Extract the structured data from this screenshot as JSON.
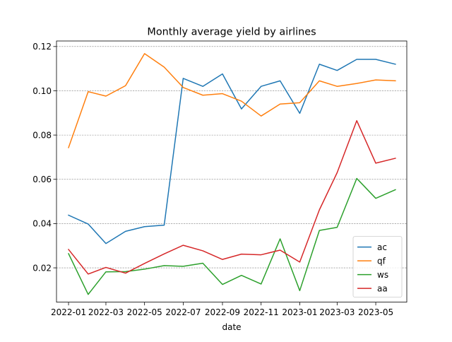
{
  "chart_data": {
    "type": "line",
    "title": "Monthly average yield by airlines",
    "xlabel": "date",
    "ylabel": "",
    "x": [
      "2022-01",
      "2022-02",
      "2022-03",
      "2022-04",
      "2022-05",
      "2022-06",
      "2022-07",
      "2022-08",
      "2022-09",
      "2022-10",
      "2022-11",
      "2022-12",
      "2023-01",
      "2023-02",
      "2023-03",
      "2023-04",
      "2023-05",
      "2023-06"
    ],
    "x_ticks": [
      "2022-01",
      "2022-03",
      "2022-05",
      "2022-07",
      "2022-09",
      "2022-11",
      "2023-01",
      "2023-03",
      "2023-05"
    ],
    "x_range": [
      "2021-12-13",
      "2023-06-19"
    ],
    "ylim": [
      0.0045,
      0.1225
    ],
    "y_ticks": [
      0.02,
      0.04,
      0.06,
      0.08,
      0.1,
      0.12
    ],
    "y_tick_labels": [
      "0.02",
      "0.04",
      "0.06",
      "0.08",
      "0.10",
      "0.12"
    ],
    "grid": {
      "y": true,
      "x": false,
      "style": "dashed"
    },
    "legend_position": "lower-right",
    "series": [
      {
        "name": "ac",
        "color": "#1f77b4",
        "values": [
          0.0438,
          0.0398,
          0.031,
          0.0365,
          0.0386,
          0.0393,
          0.1056,
          0.102,
          0.1076,
          0.0918,
          0.102,
          0.1045,
          0.0898,
          0.112,
          0.1092,
          0.1142,
          0.1142,
          0.112
        ]
      },
      {
        "name": "qf",
        "color": "#ff7f0e",
        "values": [
          0.0743,
          0.0996,
          0.0976,
          0.1023,
          0.1168,
          0.1107,
          0.1015,
          0.098,
          0.0987,
          0.0953,
          0.0886,
          0.094,
          0.0946,
          0.1045,
          0.102,
          0.1033,
          0.1049,
          0.1045
        ]
      },
      {
        "name": "ws",
        "color": "#2ca02c",
        "values": [
          0.0264,
          0.008,
          0.0182,
          0.0183,
          0.0194,
          0.021,
          0.0207,
          0.0221,
          0.0125,
          0.0166,
          0.0127,
          0.0331,
          0.0097,
          0.0369,
          0.0383,
          0.0604,
          0.0514,
          0.0553
        ]
      },
      {
        "name": "aa",
        "color": "#d62728",
        "values": [
          0.0283,
          0.0172,
          0.0202,
          0.0176,
          0.022,
          0.0263,
          0.0302,
          0.0277,
          0.0238,
          0.0262,
          0.0259,
          0.028,
          0.0226,
          0.0462,
          0.063,
          0.0865,
          0.0673,
          0.0695
        ]
      }
    ]
  }
}
